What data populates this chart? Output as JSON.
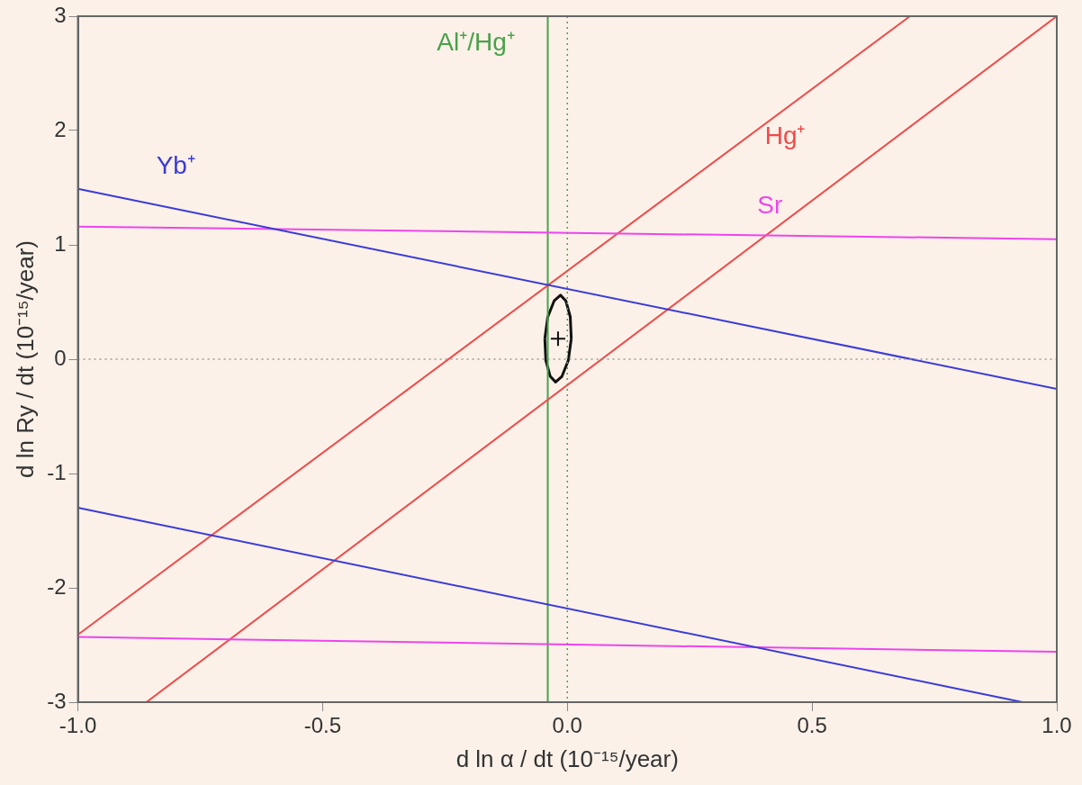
{
  "chart_data": {
    "type": "line",
    "xlabel": "d ln α / dt (10⁻¹⁵/year)",
    "ylabel": "d ln Ry / dt (10⁻¹⁵/year)",
    "xlim": [
      -1,
      1
    ],
    "ylim": [
      -3,
      3
    ],
    "xticks": [
      {
        "value": -1,
        "label": "-1.0"
      },
      {
        "value": -0.5,
        "label": "-0.5"
      },
      {
        "value": 0,
        "label": "0.0"
      },
      {
        "value": 0.5,
        "label": "0.5"
      },
      {
        "value": 1,
        "label": "1.0"
      }
    ],
    "yticks": [
      -3,
      -2,
      -1,
      0,
      1,
      2,
      3
    ],
    "grid": false,
    "legend": false,
    "marker": "none",
    "line_style": "solid",
    "ref_lines": [
      {
        "axis": "y",
        "value": 0,
        "color": "#999999",
        "line_style": "dotted"
      },
      {
        "axis": "x",
        "value": 0,
        "color": "#5a9a5a",
        "line_style": "dotted"
      }
    ],
    "series": [
      {
        "name": "Yb⁺",
        "color": "#3b3bd6",
        "x": [
          -1,
          1
        ],
        "values": [
          1.49,
          -0.26
        ]
      },
      {
        "color": "#3b3bd6",
        "x": [
          -1,
          0.93
        ],
        "values": [
          -1.3,
          -3
        ]
      },
      {
        "name": "Sr",
        "color": "#ee44ee",
        "x": [
          -1,
          1
        ],
        "values": [
          1.16,
          1.05
        ]
      },
      {
        "color": "#ee44ee",
        "x": [
          -1,
          1
        ],
        "values": [
          -2.43,
          -2.56
        ]
      },
      {
        "name": "Hg⁺",
        "color": "#f04a4a",
        "x": [
          -1,
          0.7
        ],
        "values": [
          -2.41,
          3
        ]
      },
      {
        "color": "#f04a4a",
        "x": [
          -0.86,
          1
        ],
        "values": [
          -3,
          3
        ]
      },
      {
        "name": "Al⁺/Hg⁺",
        "color": "#4aa04a",
        "x": [
          -0.04,
          -0.04
        ],
        "values": [
          -3,
          3
        ]
      },
      {
        "color": "#111111",
        "x": [
          -0.046,
          -0.04,
          -0.027,
          -0.014,
          -0.003,
          0.006,
          0.008,
          null,
          -0.046,
          -0.044,
          -0.035,
          -0.024,
          -0.011,
          0.002,
          0.008
        ],
        "values": [
          0.18,
          0.37,
          0.51,
          0.56,
          0.51,
          0.37,
          0.18,
          null,
          0.18,
          -0.01,
          -0.15,
          -0.2,
          -0.15,
          -0.01,
          0.18
        ]
      },
      {
        "type": "scatter",
        "marker": "cross",
        "color": "#111111",
        "x": [
          -0.019
        ],
        "values": [
          0.18
        ]
      }
    ]
  }
}
